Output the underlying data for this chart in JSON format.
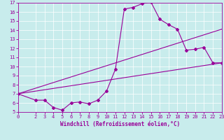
{
  "xlabel": "Windchill (Refroidissement éolien,°C)",
  "bg_color": "#c8ecec",
  "line_color": "#990099",
  "xlim": [
    0,
    23
  ],
  "ylim": [
    5,
    17
  ],
  "xticks": [
    0,
    2,
    3,
    4,
    5,
    6,
    7,
    8,
    9,
    10,
    11,
    12,
    13,
    14,
    15,
    16,
    17,
    18,
    19,
    20,
    21,
    22,
    23
  ],
  "yticks": [
    5,
    6,
    7,
    8,
    9,
    10,
    11,
    12,
    13,
    14,
    15,
    16,
    17
  ],
  "curve_x": [
    0,
    2,
    3,
    4,
    5,
    6,
    7,
    8,
    9,
    10,
    11,
    12,
    13,
    14,
    15,
    16,
    17,
    18,
    19,
    20,
    21,
    22,
    23
  ],
  "curve_y": [
    7.0,
    6.3,
    6.3,
    5.5,
    5.2,
    6.0,
    6.1,
    5.9,
    6.3,
    7.3,
    9.7,
    16.3,
    16.5,
    16.9,
    17.1,
    15.2,
    14.6,
    14.1,
    11.8,
    11.9,
    12.1,
    10.4,
    10.4
  ],
  "line2_x": [
    0,
    23
  ],
  "line2_y": [
    7.0,
    10.4
  ],
  "line3_x": [
    0,
    23
  ],
  "line3_y": [
    7.0,
    14.1
  ]
}
